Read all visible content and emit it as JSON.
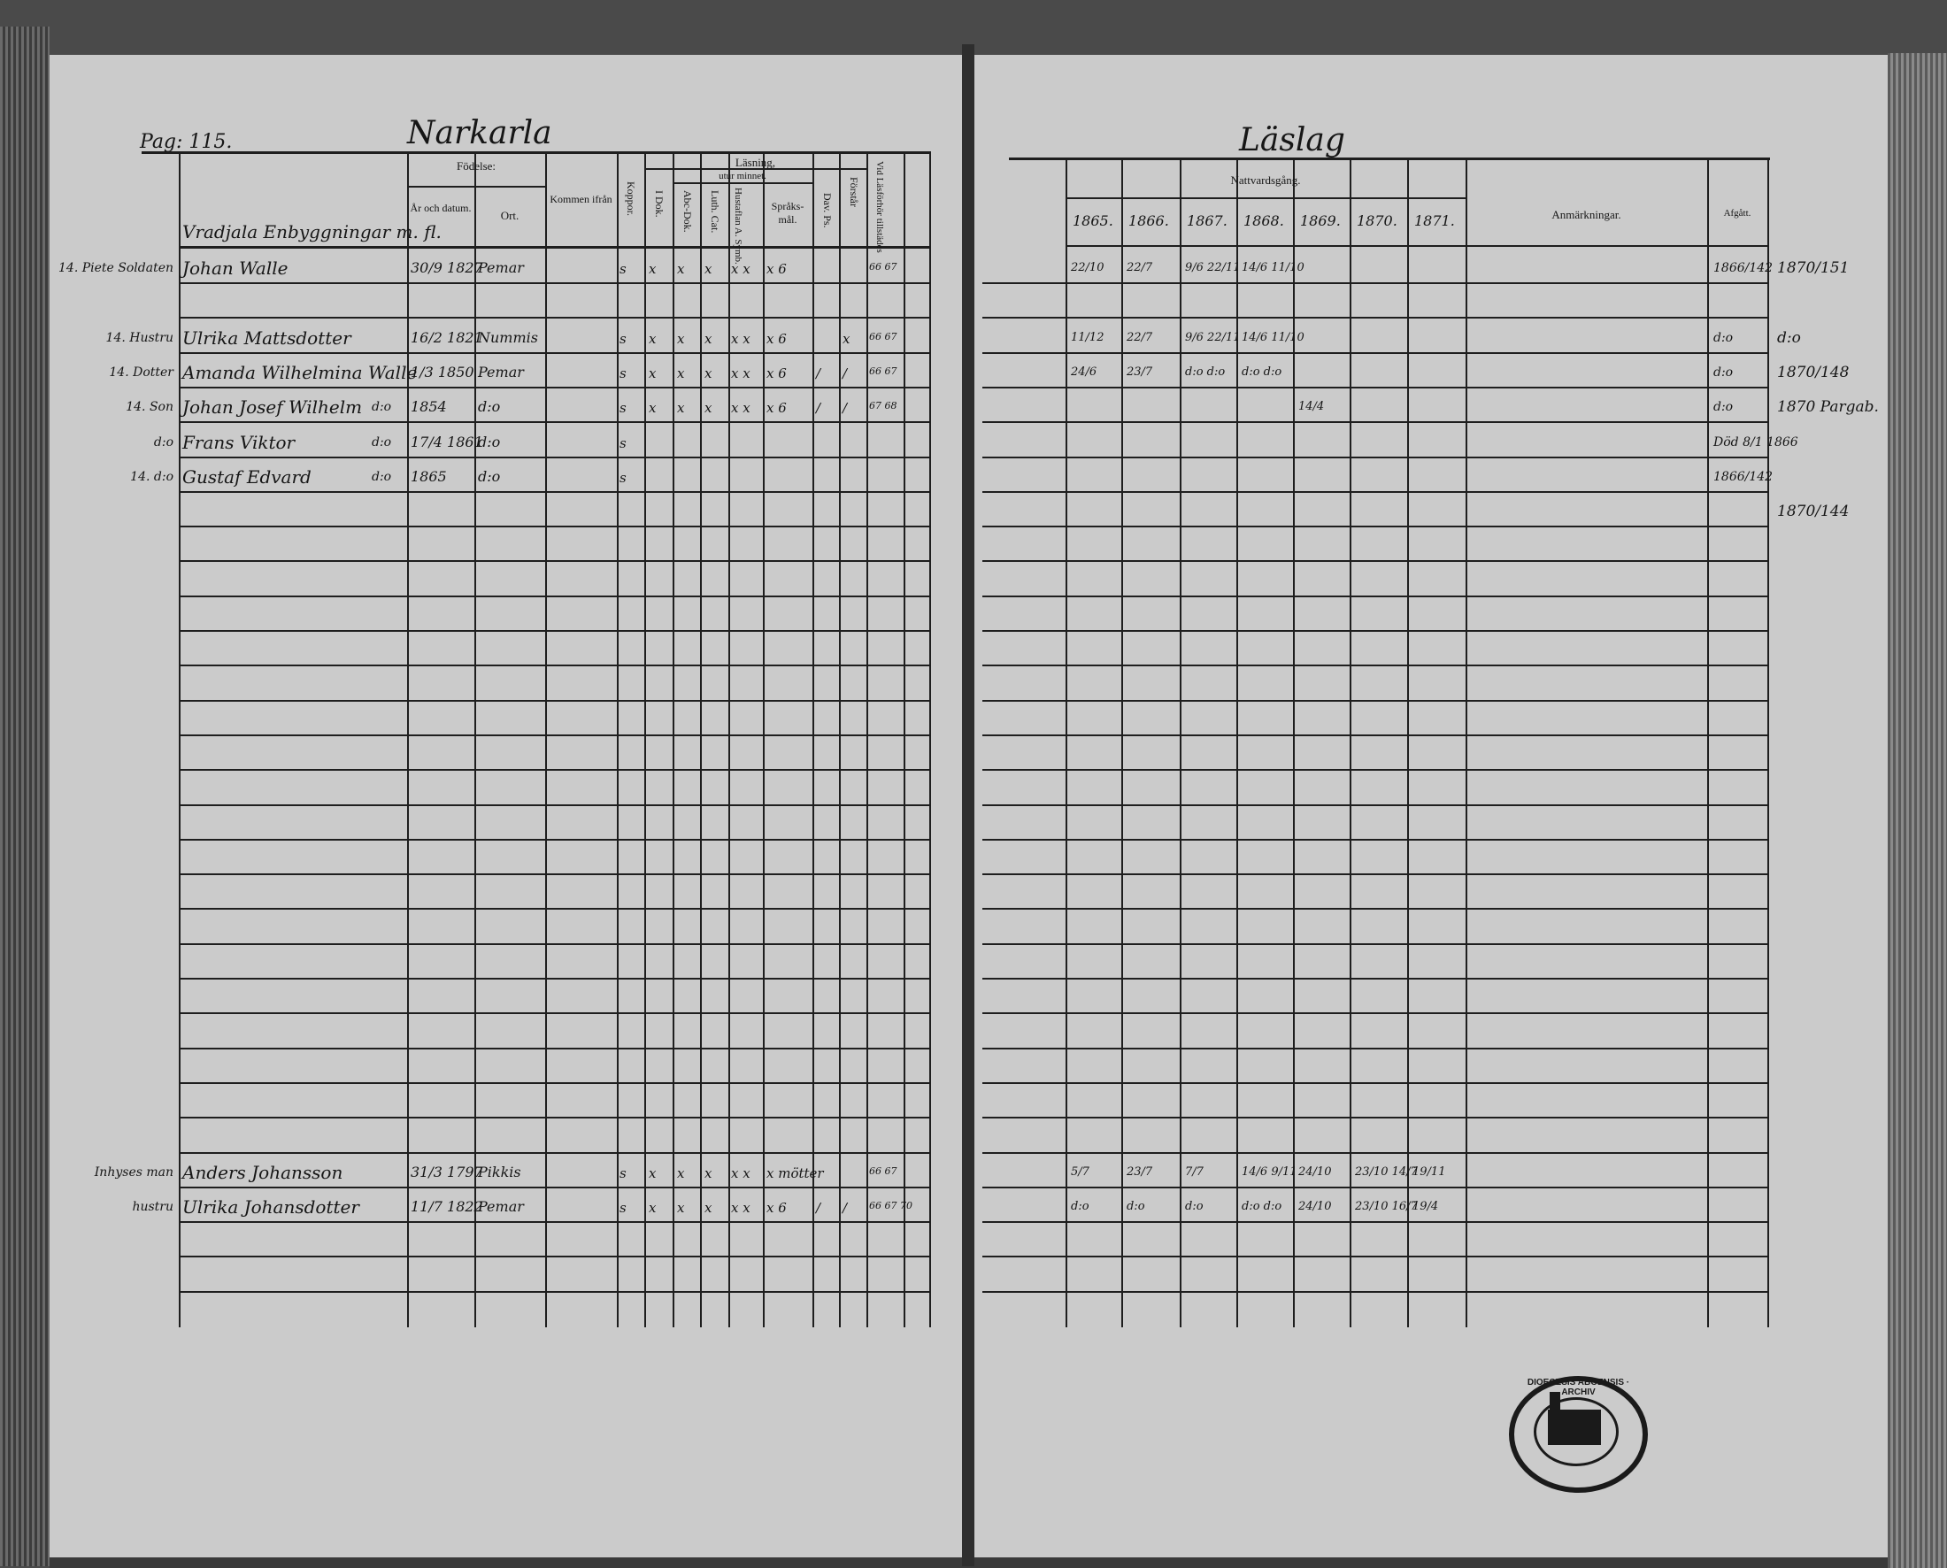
{
  "left_page": {
    "page_label": "Pag: 115.",
    "title": "Narkarla",
    "headers": {
      "fodelse": "Födelse:",
      "ar_datum": "År och datum.",
      "ort": "Ort.",
      "kommen_ifran": "Kommen ifrån",
      "koppor": "Koppor.",
      "lasning": "Läsning,",
      "utur_minnet": "utur minnet.",
      "i_dok": "I Dok.",
      "abc_dok": "Abc-Dok.",
      "luth_cat": "Luth. Cat.",
      "hustaflan": "Hustaflan A. Symb.",
      "sprak": "Språks-mål.",
      "dav_ps": "Dav. Ps.",
      "forstar": "Förstår",
      "vid_lasforhor": "Vid Läsförhör tillstädes"
    },
    "section_heading": "Vradjala Enbyggningar m. fl.",
    "entries": [
      {
        "row": 0,
        "prefix": "14. Piete Soldaten",
        "name": "Johan Walle",
        "date": "30/9 1827",
        "place": "Pemar",
        "marks": [
          "s",
          "x",
          "x",
          "x",
          "x x",
          "x 6",
          "",
          "",
          "66 67"
        ]
      },
      {
        "row": 2,
        "prefix": "14. Hustru",
        "name": "Ulrika Mattsdotter",
        "date": "16/2 1821",
        "place": "Nummis",
        "marks": [
          "s",
          "x",
          "x",
          "x",
          "x x",
          "x 6",
          "",
          "x",
          "66 67"
        ]
      },
      {
        "row": 3,
        "prefix": "14. Dotter",
        "name": "Amanda Wilhelmina Walle",
        "date": "1/3 1850",
        "place": "Pemar",
        "marks": [
          "s",
          "x",
          "x",
          "x",
          "x x",
          "x 6",
          "/",
          "/",
          "66 67"
        ]
      },
      {
        "row": 4,
        "prefix": "14. Son",
        "name": "Johan Josef Wilhelm",
        "date": "1854",
        "place": "d:o",
        "ditto": "d:o",
        "marks": [
          "s",
          "x",
          "x",
          "x",
          "x x",
          "x 6",
          "/",
          "/",
          "67 68"
        ]
      },
      {
        "row": 5,
        "prefix": "d:o",
        "name": "Frans Viktor",
        "date": "17/4 1861",
        "place": "d:o",
        "ditto": "d:o",
        "marks": [
          "s",
          "",
          "",
          "",
          "",
          "",
          "",
          "",
          ""
        ]
      },
      {
        "row": 6,
        "prefix": "14. d:o",
        "name": "Gustaf Edvard",
        "date": "1865",
        "place": "d:o",
        "ditto": "d:o",
        "marks": [
          "s",
          "",
          "",
          "",
          "",
          "",
          "",
          "",
          ""
        ]
      },
      {
        "row": 26,
        "prefix": "Inhyses man",
        "name": "Anders Johansson",
        "date": "31/3 1797",
        "place": "Pikkis",
        "marks": [
          "s",
          "x",
          "x",
          "x",
          "x x",
          "x mötter",
          "",
          "",
          "66 67"
        ]
      },
      {
        "row": 27,
        "prefix": "hustru",
        "name": "Ulrika Johansdotter",
        "date": "11/7 1822",
        "place": "Pemar",
        "marks": [
          "s",
          "x",
          "x",
          "x",
          "x x",
          "x 6",
          "/",
          "/",
          "66 67 70"
        ]
      }
    ]
  },
  "right_page": {
    "title": "Läslag",
    "headers": {
      "nattvardsgang": "Nattvardsgång.",
      "years": [
        "1865.",
        "1866.",
        "1867.",
        "1868.",
        "1869.",
        "1870.",
        "1871."
      ],
      "anmarkningar": "Anmärkningar.",
      "afgatt": "Afgått."
    },
    "rows": [
      {
        "row": 0,
        "years": [
          "22/10",
          "22/7",
          "9/6 22/11",
          "14/6 11/10",
          "",
          "",
          ""
        ],
        "afgatt": "1866/142",
        "margin": "1870/151"
      },
      {
        "row": 2,
        "years": [
          "11/12",
          "22/7",
          "9/6 22/11",
          "14/6 11/10",
          "",
          "",
          ""
        ],
        "afgatt": "d:o",
        "margin": "d:o"
      },
      {
        "row": 3,
        "years": [
          "24/6",
          "23/7",
          "d:o d:o",
          "d:o d:o",
          "",
          "",
          ""
        ],
        "afgatt": "d:o",
        "margin": "1870/148"
      },
      {
        "row": 4,
        "years": [
          "",
          "",
          "",
          "",
          "14/4",
          "",
          ""
        ],
        "afgatt": "d:o",
        "margin": "1870 Pargab."
      },
      {
        "row": 5,
        "years": [
          "",
          "",
          "",
          "",
          "",
          "",
          ""
        ],
        "afgatt": "Död 8/1 1866",
        "margin": ""
      },
      {
        "row": 6,
        "years": [
          "",
          "",
          "",
          "",
          "",
          "",
          ""
        ],
        "afgatt": "1866/142",
        "margin": ""
      },
      {
        "row": 7,
        "years": [
          "",
          "",
          "",
          "",
          "",
          "",
          ""
        ],
        "afgatt": "",
        "margin": "1870/144"
      },
      {
        "row": 26,
        "years": [
          "5/7",
          "23/7",
          "7/7",
          "14/6 9/11",
          "24/10",
          "23/10 14/7",
          "19/11"
        ],
        "afgatt": "",
        "margin": ""
      },
      {
        "row": 27,
        "years": [
          "d:o",
          "d:o",
          "d:o",
          "d:o d:o",
          "24/10",
          "23/10 16/7",
          "19/4"
        ],
        "afgatt": "",
        "margin": ""
      }
    ]
  },
  "stamp": {
    "text": "DIOECESIS ABOENSIS · ARCHIV"
  },
  "colors": {
    "paper": "#cbcbcb",
    "ink": "#161616",
    "background": "#4a4a4a"
  }
}
